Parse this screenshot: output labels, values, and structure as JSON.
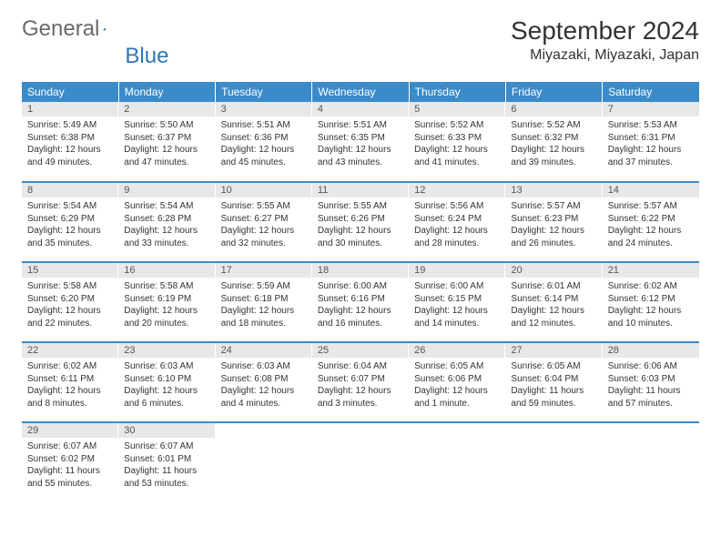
{
  "logo": {
    "word1": "General",
    "word2": "Blue"
  },
  "title": "September 2024",
  "location": "Miyazaki, Miyazaki, Japan",
  "colors": {
    "header_bg": "#3b8bc9",
    "header_text": "#ffffff",
    "daynum_bg": "#e8e8e8",
    "border": "#3b8bc9",
    "logo_gray": "#6a6a6a",
    "logo_blue": "#2d78b8"
  },
  "weekdays": [
    "Sunday",
    "Monday",
    "Tuesday",
    "Wednesday",
    "Thursday",
    "Friday",
    "Saturday"
  ],
  "weeks": [
    [
      {
        "n": "1",
        "sr": "Sunrise: 5:49 AM",
        "ss": "Sunset: 6:38 PM",
        "d1": "Daylight: 12 hours",
        "d2": "and 49 minutes."
      },
      {
        "n": "2",
        "sr": "Sunrise: 5:50 AM",
        "ss": "Sunset: 6:37 PM",
        "d1": "Daylight: 12 hours",
        "d2": "and 47 minutes."
      },
      {
        "n": "3",
        "sr": "Sunrise: 5:51 AM",
        "ss": "Sunset: 6:36 PM",
        "d1": "Daylight: 12 hours",
        "d2": "and 45 minutes."
      },
      {
        "n": "4",
        "sr": "Sunrise: 5:51 AM",
        "ss": "Sunset: 6:35 PM",
        "d1": "Daylight: 12 hours",
        "d2": "and 43 minutes."
      },
      {
        "n": "5",
        "sr": "Sunrise: 5:52 AM",
        "ss": "Sunset: 6:33 PM",
        "d1": "Daylight: 12 hours",
        "d2": "and 41 minutes."
      },
      {
        "n": "6",
        "sr": "Sunrise: 5:52 AM",
        "ss": "Sunset: 6:32 PM",
        "d1": "Daylight: 12 hours",
        "d2": "and 39 minutes."
      },
      {
        "n": "7",
        "sr": "Sunrise: 5:53 AM",
        "ss": "Sunset: 6:31 PM",
        "d1": "Daylight: 12 hours",
        "d2": "and 37 minutes."
      }
    ],
    [
      {
        "n": "8",
        "sr": "Sunrise: 5:54 AM",
        "ss": "Sunset: 6:29 PM",
        "d1": "Daylight: 12 hours",
        "d2": "and 35 minutes."
      },
      {
        "n": "9",
        "sr": "Sunrise: 5:54 AM",
        "ss": "Sunset: 6:28 PM",
        "d1": "Daylight: 12 hours",
        "d2": "and 33 minutes."
      },
      {
        "n": "10",
        "sr": "Sunrise: 5:55 AM",
        "ss": "Sunset: 6:27 PM",
        "d1": "Daylight: 12 hours",
        "d2": "and 32 minutes."
      },
      {
        "n": "11",
        "sr": "Sunrise: 5:55 AM",
        "ss": "Sunset: 6:26 PM",
        "d1": "Daylight: 12 hours",
        "d2": "and 30 minutes."
      },
      {
        "n": "12",
        "sr": "Sunrise: 5:56 AM",
        "ss": "Sunset: 6:24 PM",
        "d1": "Daylight: 12 hours",
        "d2": "and 28 minutes."
      },
      {
        "n": "13",
        "sr": "Sunrise: 5:57 AM",
        "ss": "Sunset: 6:23 PM",
        "d1": "Daylight: 12 hours",
        "d2": "and 26 minutes."
      },
      {
        "n": "14",
        "sr": "Sunrise: 5:57 AM",
        "ss": "Sunset: 6:22 PM",
        "d1": "Daylight: 12 hours",
        "d2": "and 24 minutes."
      }
    ],
    [
      {
        "n": "15",
        "sr": "Sunrise: 5:58 AM",
        "ss": "Sunset: 6:20 PM",
        "d1": "Daylight: 12 hours",
        "d2": "and 22 minutes."
      },
      {
        "n": "16",
        "sr": "Sunrise: 5:58 AM",
        "ss": "Sunset: 6:19 PM",
        "d1": "Daylight: 12 hours",
        "d2": "and 20 minutes."
      },
      {
        "n": "17",
        "sr": "Sunrise: 5:59 AM",
        "ss": "Sunset: 6:18 PM",
        "d1": "Daylight: 12 hours",
        "d2": "and 18 minutes."
      },
      {
        "n": "18",
        "sr": "Sunrise: 6:00 AM",
        "ss": "Sunset: 6:16 PM",
        "d1": "Daylight: 12 hours",
        "d2": "and 16 minutes."
      },
      {
        "n": "19",
        "sr": "Sunrise: 6:00 AM",
        "ss": "Sunset: 6:15 PM",
        "d1": "Daylight: 12 hours",
        "d2": "and 14 minutes."
      },
      {
        "n": "20",
        "sr": "Sunrise: 6:01 AM",
        "ss": "Sunset: 6:14 PM",
        "d1": "Daylight: 12 hours",
        "d2": "and 12 minutes."
      },
      {
        "n": "21",
        "sr": "Sunrise: 6:02 AM",
        "ss": "Sunset: 6:12 PM",
        "d1": "Daylight: 12 hours",
        "d2": "and 10 minutes."
      }
    ],
    [
      {
        "n": "22",
        "sr": "Sunrise: 6:02 AM",
        "ss": "Sunset: 6:11 PM",
        "d1": "Daylight: 12 hours",
        "d2": "and 8 minutes."
      },
      {
        "n": "23",
        "sr": "Sunrise: 6:03 AM",
        "ss": "Sunset: 6:10 PM",
        "d1": "Daylight: 12 hours",
        "d2": "and 6 minutes."
      },
      {
        "n": "24",
        "sr": "Sunrise: 6:03 AM",
        "ss": "Sunset: 6:08 PM",
        "d1": "Daylight: 12 hours",
        "d2": "and 4 minutes."
      },
      {
        "n": "25",
        "sr": "Sunrise: 6:04 AM",
        "ss": "Sunset: 6:07 PM",
        "d1": "Daylight: 12 hours",
        "d2": "and 3 minutes."
      },
      {
        "n": "26",
        "sr": "Sunrise: 6:05 AM",
        "ss": "Sunset: 6:06 PM",
        "d1": "Daylight: 12 hours",
        "d2": "and 1 minute."
      },
      {
        "n": "27",
        "sr": "Sunrise: 6:05 AM",
        "ss": "Sunset: 6:04 PM",
        "d1": "Daylight: 11 hours",
        "d2": "and 59 minutes."
      },
      {
        "n": "28",
        "sr": "Sunrise: 6:06 AM",
        "ss": "Sunset: 6:03 PM",
        "d1": "Daylight: 11 hours",
        "d2": "and 57 minutes."
      }
    ],
    [
      {
        "n": "29",
        "sr": "Sunrise: 6:07 AM",
        "ss": "Sunset: 6:02 PM",
        "d1": "Daylight: 11 hours",
        "d2": "and 55 minutes."
      },
      {
        "n": "30",
        "sr": "Sunrise: 6:07 AM",
        "ss": "Sunset: 6:01 PM",
        "d1": "Daylight: 11 hours",
        "d2": "and 53 minutes."
      },
      {
        "empty": true
      },
      {
        "empty": true
      },
      {
        "empty": true
      },
      {
        "empty": true
      },
      {
        "empty": true
      }
    ]
  ]
}
